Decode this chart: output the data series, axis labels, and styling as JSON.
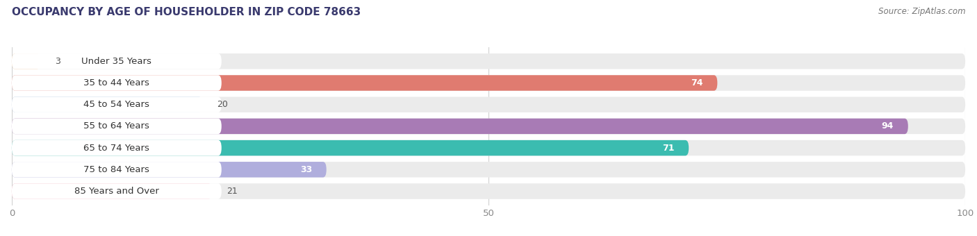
{
  "title": "OCCUPANCY BY AGE OF HOUSEHOLDER IN ZIP CODE 78663",
  "source": "Source: ZipAtlas.com",
  "categories": [
    "Under 35 Years",
    "35 to 44 Years",
    "45 to 54 Years",
    "55 to 64 Years",
    "65 to 74 Years",
    "75 to 84 Years",
    "85 Years and Over"
  ],
  "values": [
    3,
    74,
    20,
    94,
    71,
    33,
    21
  ],
  "bar_colors": [
    "#f5c99a",
    "#e07b70",
    "#a8bfdf",
    "#a87bb5",
    "#3bbcb0",
    "#b0aedd",
    "#f5a0b5"
  ],
  "bar_bg_color": "#ebebeb",
  "xlim": [
    0,
    100
  ],
  "xticks": [
    0,
    50,
    100
  ],
  "title_fontsize": 11,
  "label_fontsize": 9.5,
  "value_fontsize": 9.0,
  "source_fontsize": 8.5,
  "bar_height": 0.72,
  "background_color": "#ffffff",
  "label_pill_color": "#ffffff",
  "label_color": "#333333",
  "grid_color": "#d0d0d0",
  "tick_color": "#888888"
}
